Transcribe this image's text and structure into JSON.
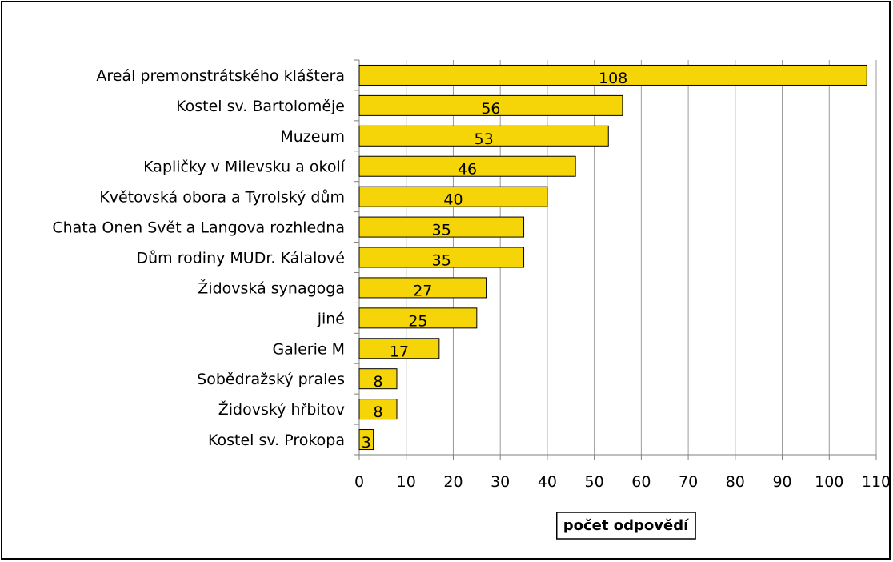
{
  "chart_data": {
    "type": "bar",
    "orientation": "horizontal",
    "categories": [
      "Areál premonstrátského kláštera",
      "Kostel sv. Bartoloměje",
      "Muzeum",
      "Kapličky v Milevsku a okolí",
      "Květovská obora a Tyrolský dům",
      "Chata Onen Svět a Langova rozhledna",
      "Dům rodiny MUDr. Kálalové",
      "Židovská synagoga",
      "jiné",
      "Galerie M",
      "Sobědražský prales",
      "Židovský hřbitov",
      "Kostel sv. Prokopa"
    ],
    "values": [
      108,
      56,
      53,
      46,
      40,
      35,
      35,
      27,
      25,
      17,
      8,
      8,
      3
    ],
    "xlabel": "počet odpovědí",
    "xlim": [
      0,
      110
    ],
    "xticks": [
      0,
      10,
      20,
      30,
      40,
      50,
      60,
      70,
      80,
      90,
      100,
      110
    ],
    "grid": "vertical",
    "bar_color": "#f5d507",
    "bar_edge_color": "#000000",
    "data_labels": true
  }
}
